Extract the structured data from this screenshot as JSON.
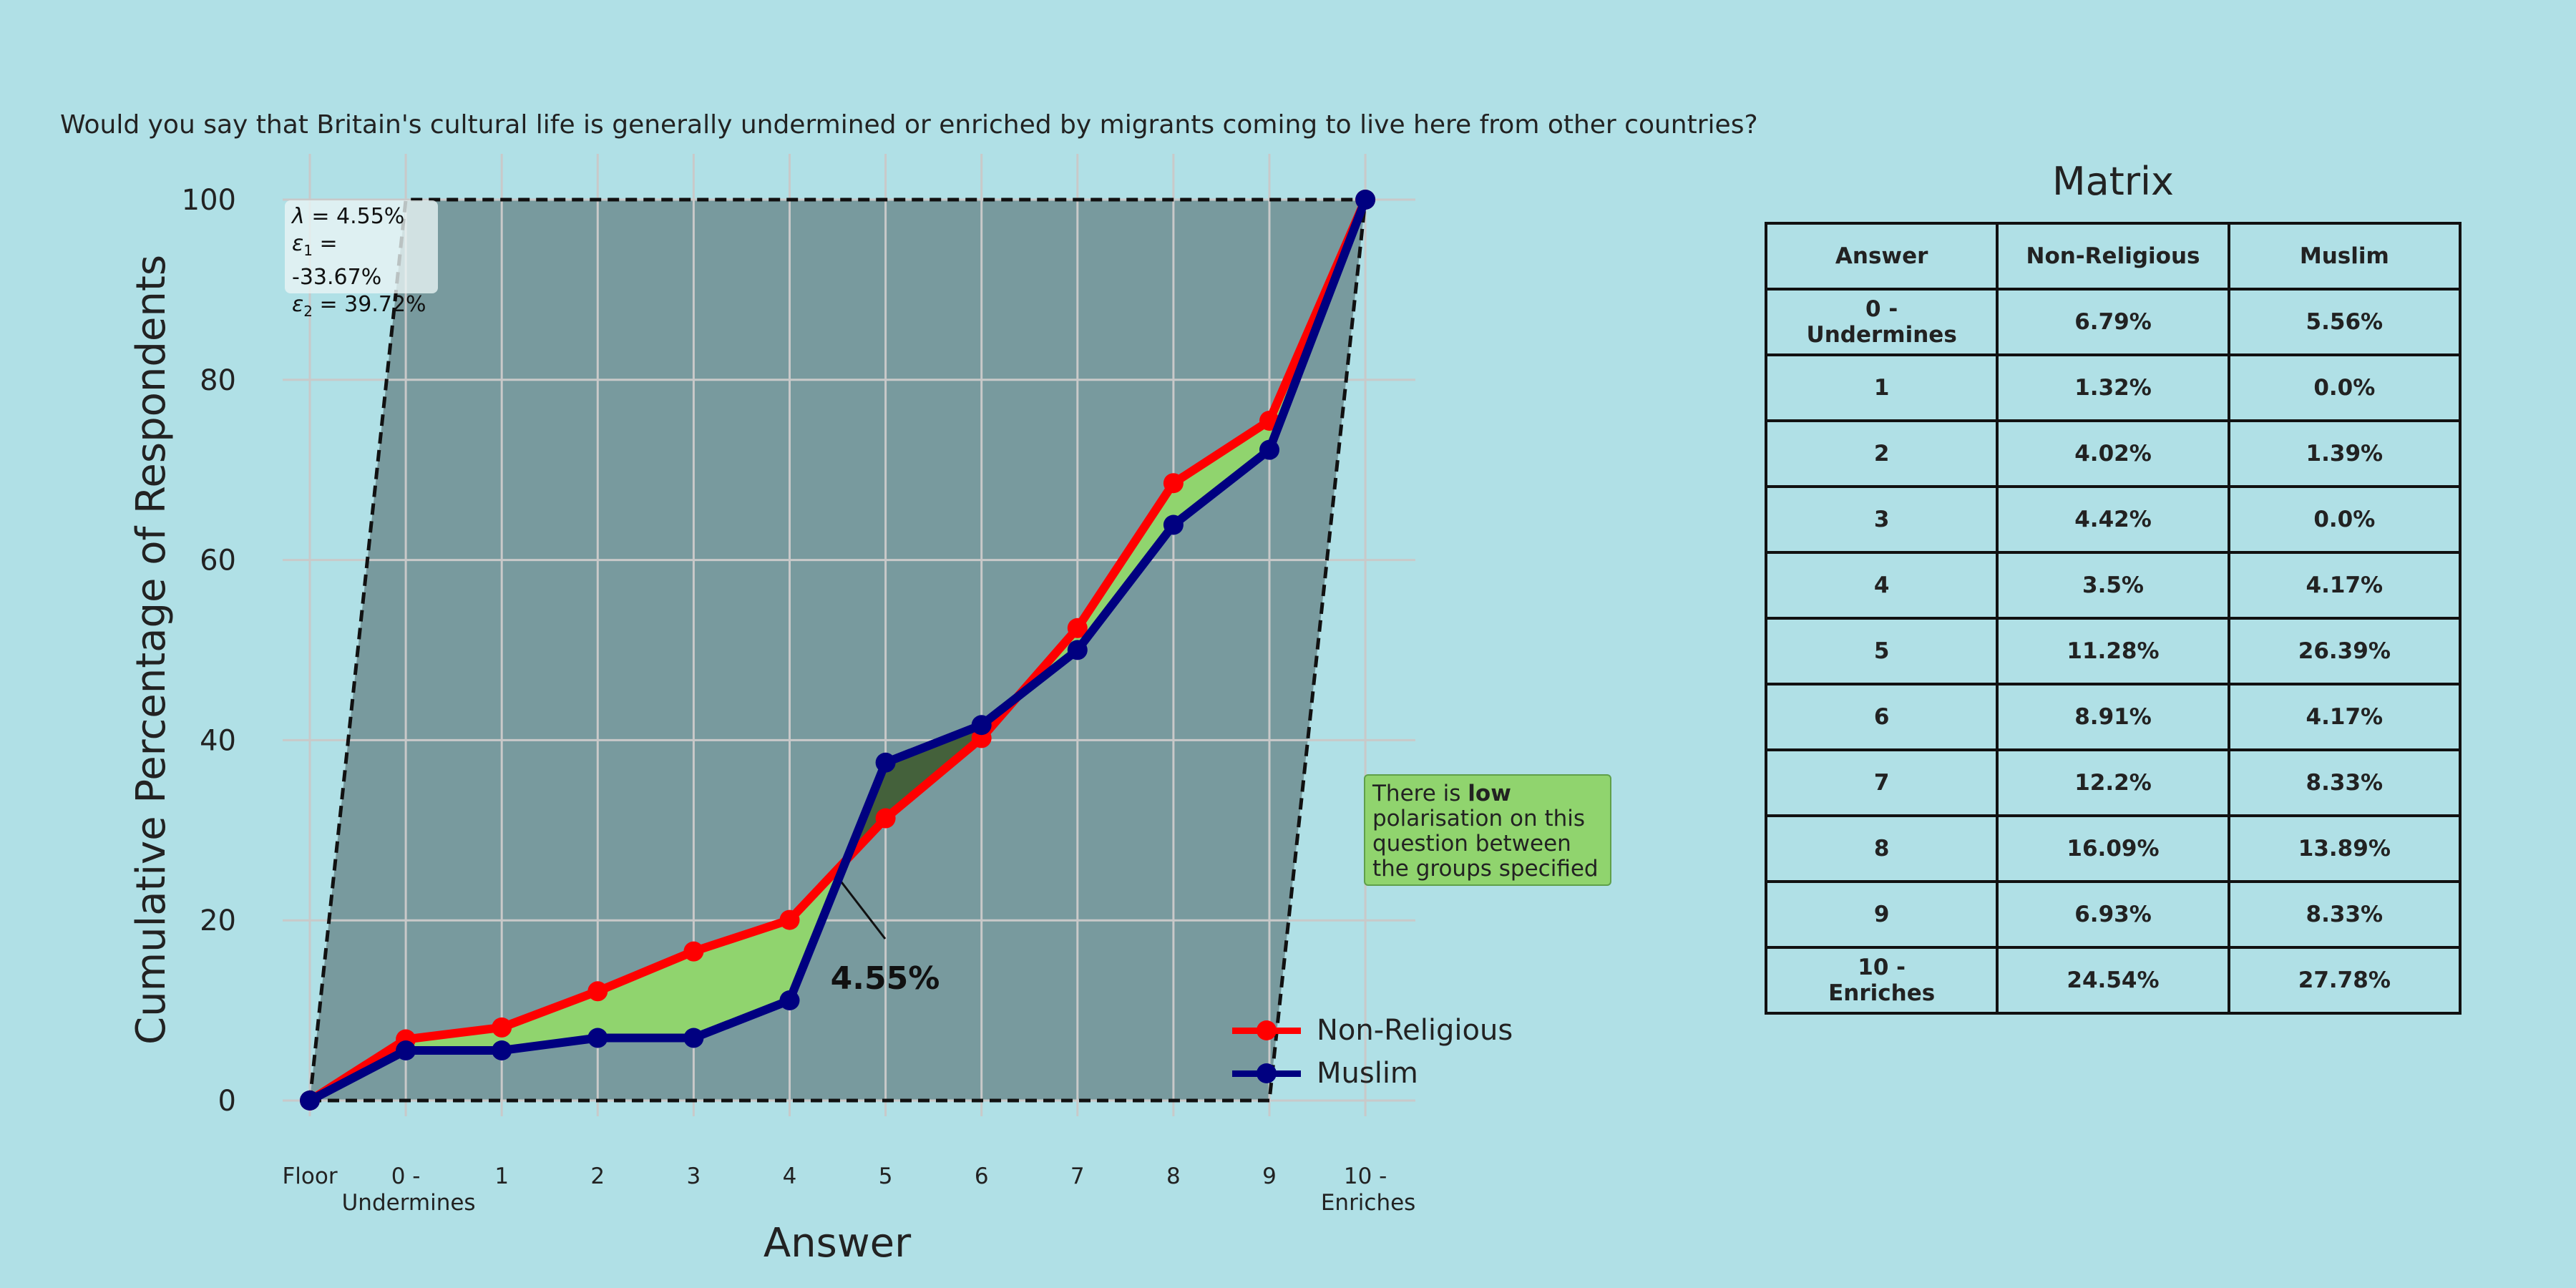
{
  "question": "Would you say that Britain's cultural life is generally undermined or enriched by migrants coming to live here from other countries?",
  "stats": {
    "lambda_label": "λ",
    "lambda_value": "= 4.55%",
    "eps1_label": "ε",
    "eps1_sub": "1",
    "eps1_value": "= -33.67%",
    "eps2_label": "ε",
    "eps2_sub": "2",
    "eps2_value": "= 39.72%"
  },
  "annotation": {
    "area_label": "4.55%"
  },
  "note": {
    "prefix": "There is ",
    "emphasis": "low",
    "suffix": " polarisation on this question between the groups specified"
  },
  "colors": {
    "background": "#b0e0e6",
    "plot_fill": "#789a9e",
    "gap_fill": "#90d46e",
    "crossover_fill": "#44613b",
    "non_religious": "#ff0000",
    "muslim": "#000080",
    "grid": "#c9c9c9"
  },
  "chart_data": {
    "type": "line",
    "title": "",
    "xlabel": "Answer",
    "ylabel": "Cumulative Percentage of Respondents",
    "categories": [
      "Floor",
      "0 -\nUndermines",
      "1",
      "2",
      "3",
      "4",
      "5",
      "6",
      "7",
      "8",
      "9",
      "10 -\nEnriches"
    ],
    "ylim": [
      0,
      100
    ],
    "yticks": [
      0,
      20,
      40,
      60,
      80,
      100
    ],
    "grid": true,
    "legend_position": "bottom-right",
    "series": [
      {
        "name": "Non-Religious",
        "values": [
          0,
          6.79,
          8.11,
          12.13,
          16.55,
          20.05,
          31.33,
          40.24,
          52.44,
          68.53,
          75.46,
          100
        ]
      },
      {
        "name": "Muslim",
        "values": [
          0,
          5.56,
          5.56,
          6.95,
          6.95,
          11.12,
          37.51,
          41.68,
          50.01,
          63.9,
          72.23,
          100
        ]
      }
    ],
    "envelope": {
      "bottom": [
        [
          0,
          0
        ],
        [
          10,
          0
        ],
        [
          11,
          100
        ]
      ],
      "top": [
        [
          0,
          0
        ],
        [
          1,
          100
        ],
        [
          11,
          100
        ]
      ]
    }
  },
  "matrix": {
    "title": "Matrix",
    "headers": [
      "Answer",
      "Non-Religious",
      "Muslim"
    ],
    "rows": [
      [
        "0 -\nUndermines",
        "6.79%",
        "5.56%"
      ],
      [
        "1",
        "1.32%",
        "0.0%"
      ],
      [
        "2",
        "4.02%",
        "1.39%"
      ],
      [
        "3",
        "4.42%",
        "0.0%"
      ],
      [
        "4",
        "3.5%",
        "4.17%"
      ],
      [
        "5",
        "11.28%",
        "26.39%"
      ],
      [
        "6",
        "8.91%",
        "4.17%"
      ],
      [
        "7",
        "12.2%",
        "8.33%"
      ],
      [
        "8",
        "16.09%",
        "13.89%"
      ],
      [
        "9",
        "6.93%",
        "8.33%"
      ],
      [
        "10 -\nEnriches",
        "24.54%",
        "27.78%"
      ]
    ]
  }
}
